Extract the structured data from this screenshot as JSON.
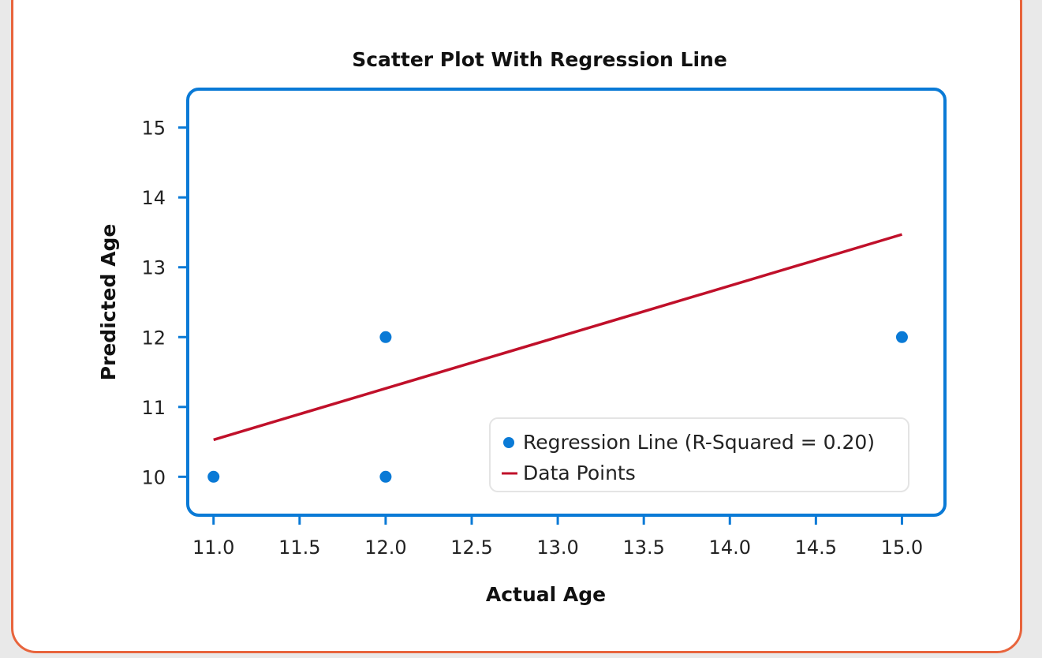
{
  "chart_data": {
    "type": "scatter",
    "title": "Scatter Plot With Regression Line",
    "xlabel": "Actual Age",
    "ylabel": "Predicted Age",
    "xlim": [
      10.85,
      15.25
    ],
    "ylim": [
      9.45,
      15.55
    ],
    "xticks": [
      11.0,
      11.5,
      12.0,
      12.5,
      13.0,
      13.5,
      14.0,
      14.5,
      15.0
    ],
    "xtick_labels": [
      "11.0",
      "11.5",
      "12.0",
      "12.5",
      "13.0",
      "13.5",
      "14.0",
      "14.5",
      "15.0"
    ],
    "yticks": [
      10,
      11,
      12,
      13,
      14,
      15
    ],
    "ytick_labels": [
      "10",
      "11",
      "12",
      "13",
      "14",
      "15"
    ],
    "grid": false,
    "legend_position": "bottom-right",
    "series": [
      {
        "name": "Regression Line (R-Squared = 0.20)",
        "kind": "scatter",
        "color": "#0a7ad6",
        "points": [
          {
            "x": 11.0,
            "y": 10
          },
          {
            "x": 12.0,
            "y": 12
          },
          {
            "x": 12.0,
            "y": 10
          },
          {
            "x": 15.0,
            "y": 12
          }
        ]
      },
      {
        "name": "Data Points",
        "kind": "line",
        "color": "#c0102a",
        "points": [
          {
            "x": 11.0,
            "y": 10.53
          },
          {
            "x": 15.0,
            "y": 13.47
          }
        ]
      }
    ]
  },
  "colors": {
    "frame": "#0a7ad6",
    "card_border": "#e8643c",
    "background": "#ffffff"
  }
}
